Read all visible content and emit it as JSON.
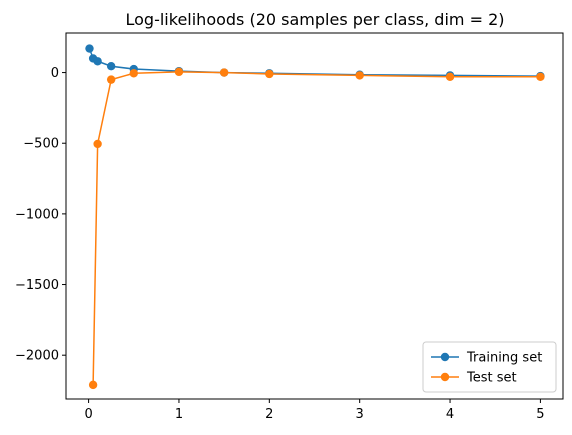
{
  "chart_data": {
    "type": "line",
    "title": "Log-likelihoods (20 samples per class, dim = 2)",
    "xlabel": "",
    "ylabel": "",
    "xlim": [
      -0.25,
      5.25
    ],
    "ylim": [
      -2310,
      280
    ],
    "xticks": [
      0,
      1,
      2,
      3,
      4,
      5
    ],
    "yticks": [
      0,
      -500,
      -1000,
      -1500,
      -2000
    ],
    "ytick_labels": [
      "0",
      "−500",
      "−1000",
      "−1500",
      "−2000"
    ],
    "grid": false,
    "legend_position": "bottom-right",
    "series": [
      {
        "name": "Training set",
        "color": "#1f77b4",
        "marker": "circle",
        "x": [
          0.01,
          0.05,
          0.1,
          0.25,
          0.5,
          1,
          1.5,
          2,
          3,
          4,
          5
        ],
        "y": [
          170,
          100,
          80,
          45,
          25,
          10,
          0,
          -5,
          -15,
          -20,
          -25
        ]
      },
      {
        "name": "Test set",
        "color": "#ff7f0e",
        "marker": "circle",
        "x": [
          0.05,
          0.1,
          0.25,
          0.5,
          1,
          1.5,
          2,
          3,
          4,
          5
        ],
        "y": [
          -2210,
          -505,
          -50,
          -5,
          5,
          0,
          -10,
          -20,
          -30,
          -30
        ]
      }
    ]
  }
}
